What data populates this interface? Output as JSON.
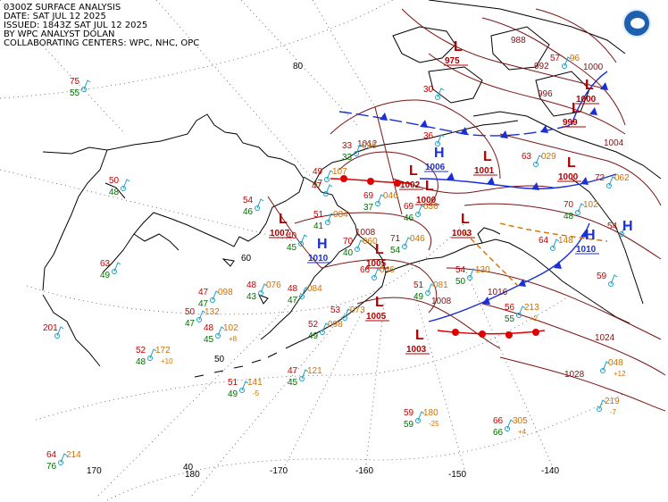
{
  "header": {
    "line1": "0300Z SURFACE ANALYSIS",
    "line2": "DATE: SAT JUL 12 2025",
    "line3": "ISSUED: 1843Z SAT JUL 12 2025",
    "line4": "BY WPC ANALYST DOLAN",
    "line5": "COLLABORATING CENTERS: WPC, NHC, OPC"
  },
  "logo": "noaa-logo",
  "colors": {
    "pressure_center": "#b00000",
    "isobar": "#7a1414",
    "cold_front": "#1a2fd6",
    "warm_front": "#e00000",
    "temp": "#c80000",
    "dewpoint": "#007000",
    "pressure_tendency": "#d07000",
    "coastline": "#000000",
    "station": "#1aa0c8"
  },
  "grid_labels": {
    "lat_80": "80",
    "lat_60": "60",
    "lat_50": "50",
    "lat_40": "40",
    "lon_170": "170",
    "lon_180": "180",
    "lon_m170": "-170",
    "lon_m160": "-160",
    "lon_m150": "-150",
    "lon_m140": "-140"
  },
  "pressure_centers": [
    {
      "type": "H",
      "value": "1010"
    },
    {
      "type": "H",
      "value": "1006"
    },
    {
      "type": "H",
      "value": "1010"
    },
    {
      "type": "H",
      "value": ""
    },
    {
      "type": "L",
      "value": "1007"
    },
    {
      "type": "L",
      "value": "1002"
    },
    {
      "type": "L",
      "value": "1000"
    },
    {
      "type": "L",
      "value": "1001"
    },
    {
      "type": "L",
      "value": "1003"
    },
    {
      "type": "L",
      "value": "1005"
    },
    {
      "type": "L",
      "value": "1005"
    },
    {
      "type": "L",
      "value": "1003"
    },
    {
      "type": "L",
      "value": "999"
    },
    {
      "type": "L",
      "value": "1000"
    },
    {
      "type": "L",
      "value": "975"
    },
    {
      "type": "L",
      "value": "1000"
    }
  ],
  "isobar_labels": [
    "1008",
    "1012",
    "1016",
    "1004",
    "1000",
    "996",
    "992",
    "988",
    "1024",
    "1028",
    "1008"
  ],
  "stations": [
    {
      "t": "75",
      "d": "55",
      "p": ""
    },
    {
      "t": "50",
      "d": "48",
      "p": ""
    },
    {
      "t": "63",
      "d": "49",
      "p": ""
    },
    {
      "t": "201",
      "d": "",
      "p": ""
    },
    {
      "t": "52",
      "d": "48",
      "p": "172",
      "tend": "+10"
    },
    {
      "t": "47",
      "d": "47",
      "p": "098"
    },
    {
      "t": "50",
      "d": "47",
      "p": "132"
    },
    {
      "t": "48",
      "d": "45",
      "p": "102",
      "tend": "+8"
    },
    {
      "t": "48",
      "d": "43",
      "p": "076"
    },
    {
      "t": "48",
      "d": "47",
      "p": "084"
    },
    {
      "t": "52",
      "d": "49",
      "p": "098"
    },
    {
      "t": "53",
      "d": "",
      "p": "073"
    },
    {
      "t": "51",
      "d": "49",
      "p": "141",
      "tend": "-5"
    },
    {
      "t": "47",
      "d": "45",
      "p": "121"
    },
    {
      "t": "54",
      "d": "46",
      "p": ""
    },
    {
      "t": "51",
      "d": "41",
      "p": "084"
    },
    {
      "t": "70",
      "d": "40",
      "p": "060"
    },
    {
      "t": "66",
      "d": "",
      "p": "046"
    },
    {
      "t": "69",
      "d": "37",
      "p": "046"
    },
    {
      "t": "49",
      "d": "47",
      "p": "107"
    },
    {
      "t": "33",
      "d": "33",
      "p": "096"
    },
    {
      "t": "71",
      "d": "54",
      "p": "046"
    },
    {
      "t": "69",
      "d": "46",
      "p": "036"
    },
    {
      "t": "51",
      "d": "49",
      "p": "081"
    },
    {
      "t": "54",
      "d": "50",
      "p": "130"
    },
    {
      "t": "56",
      "d": "55",
      "p": "213",
      "tend": "+2"
    },
    {
      "t": "59",
      "d": "59",
      "p": "180",
      "tend": "-25"
    },
    {
      "t": "66",
      "d": "66",
      "p": "305",
      "tend": "+4"
    },
    {
      "t": "64",
      "d": "76",
      "p": "214"
    },
    {
      "t": "63",
      "d": "",
      "p": "029"
    },
    {
      "t": "70",
      "d": "48",
      "p": "102"
    },
    {
      "t": "64",
      "d": "",
      "p": "148"
    },
    {
      "t": "72",
      "d": "",
      "p": "062"
    },
    {
      "t": "54",
      "d": "",
      "p": ""
    },
    {
      "t": "59",
      "d": "",
      "p": ""
    },
    {
      "t": "57",
      "d": "",
      "p": "96"
    },
    {
      "t": "",
      "d": "",
      "p": "048",
      "tend": "+12"
    },
    {
      "t": "",
      "d": "",
      "p": "219",
      "tend": "-7"
    },
    {
      "t": "36",
      "d": "",
      "p": ""
    },
    {
      "t": "40",
      "d": "45",
      "p": ""
    },
    {
      "t": "47",
      "d": "",
      "p": ""
    },
    {
      "t": "30",
      "d": "",
      "p": ""
    }
  ]
}
